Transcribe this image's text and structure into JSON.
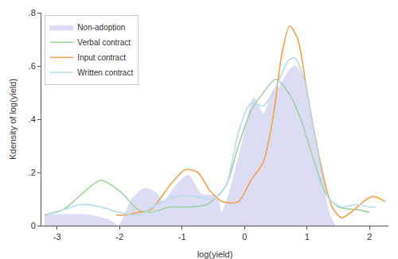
{
  "chart_data": {
    "type": "line",
    "x_label": "log(yield)",
    "y_label": "Kdensity of log(yield)",
    "xlim": [
      -3.25,
      2.3
    ],
    "xticks": [
      -3,
      -2,
      -1,
      0,
      1,
      2
    ],
    "ylim": [
      0,
      0.8
    ],
    "yticks": [
      0,
      {
        "value": 0.2,
        "label": ".2"
      },
      {
        "value": 0.4,
        "label": ".4"
      },
      {
        "value": 0.6,
        "label": ".6"
      },
      {
        "value": 0.8,
        "label": ".8"
      }
    ],
    "grid": false,
    "legend": "top-left",
    "series": [
      {
        "name": "Non-adoption",
        "type": "area",
        "color": "#dcdcf5",
        "x": [
          -3.2,
          -2.5,
          -2.15,
          -2.02,
          -1.8,
          -1.6,
          -1.4,
          -1.3,
          -1.1,
          -0.9,
          -0.7,
          -0.45,
          -0.37,
          -0.25,
          -0.05,
          0.15,
          0.3,
          0.45,
          0.55,
          0.7,
          0.8,
          0.95,
          1.15,
          1.35,
          1.45
        ],
        "values": [
          0.04,
          0.04,
          0.02,
          0.0,
          0.1,
          0.14,
          0.12,
          0.09,
          0.15,
          0.19,
          0.12,
          0.11,
          0.05,
          0.12,
          0.3,
          0.48,
          0.42,
          0.5,
          0.52,
          0.58,
          0.6,
          0.55,
          0.3,
          0.05,
          0.0
        ]
      },
      {
        "name": "Verbal contract",
        "type": "line",
        "color": "#9fd49f",
        "x": [
          -3.2,
          -2.9,
          -2.6,
          -2.3,
          -2.0,
          -1.7,
          -1.5,
          -1.2,
          -0.9,
          -0.6,
          -0.3,
          -0.1,
          0.1,
          0.3,
          0.5,
          0.7,
          0.9,
          1.1,
          1.3,
          1.5,
          1.8,
          2.0
        ],
        "values": [
          0.04,
          0.06,
          0.12,
          0.17,
          0.13,
          0.06,
          0.05,
          0.07,
          0.07,
          0.08,
          0.15,
          0.3,
          0.43,
          0.5,
          0.55,
          0.5,
          0.4,
          0.25,
          0.12,
          0.07,
          0.06,
          0.05
        ]
      },
      {
        "name": "Input contract",
        "type": "line",
        "color": "#f5a04a",
        "x": [
          -2.05,
          -1.9,
          -1.7,
          -1.5,
          -1.2,
          -0.95,
          -0.75,
          -0.55,
          -0.35,
          -0.1,
          0.1,
          0.3,
          0.45,
          0.6,
          0.72,
          0.85,
          1.0,
          1.2,
          1.4,
          1.55,
          1.7,
          1.9,
          2.05,
          2.25
        ],
        "values": [
          0.04,
          0.04,
          0.05,
          0.06,
          0.15,
          0.21,
          0.2,
          0.13,
          0.09,
          0.09,
          0.17,
          0.24,
          0.4,
          0.65,
          0.75,
          0.7,
          0.5,
          0.25,
          0.07,
          0.03,
          0.05,
          0.09,
          0.11,
          0.09
        ]
      },
      {
        "name": "Written contract",
        "type": "line",
        "color": "#b7dcec",
        "x": [
          -3.2,
          -2.9,
          -2.6,
          -2.3,
          -2.0,
          -1.7,
          -1.4,
          -1.1,
          -0.8,
          -0.5,
          -0.3,
          -0.1,
          0.1,
          0.3,
          0.5,
          0.7,
          0.8,
          0.95,
          1.15,
          1.35,
          1.55,
          1.8,
          2.0,
          2.1
        ],
        "values": [
          0.04,
          0.06,
          0.08,
          0.07,
          0.05,
          0.04,
          0.08,
          0.11,
          0.11,
          0.1,
          0.15,
          0.35,
          0.46,
          0.45,
          0.52,
          0.62,
          0.63,
          0.55,
          0.3,
          0.1,
          0.07,
          0.08,
          0.07,
          0.07
        ]
      }
    ]
  }
}
